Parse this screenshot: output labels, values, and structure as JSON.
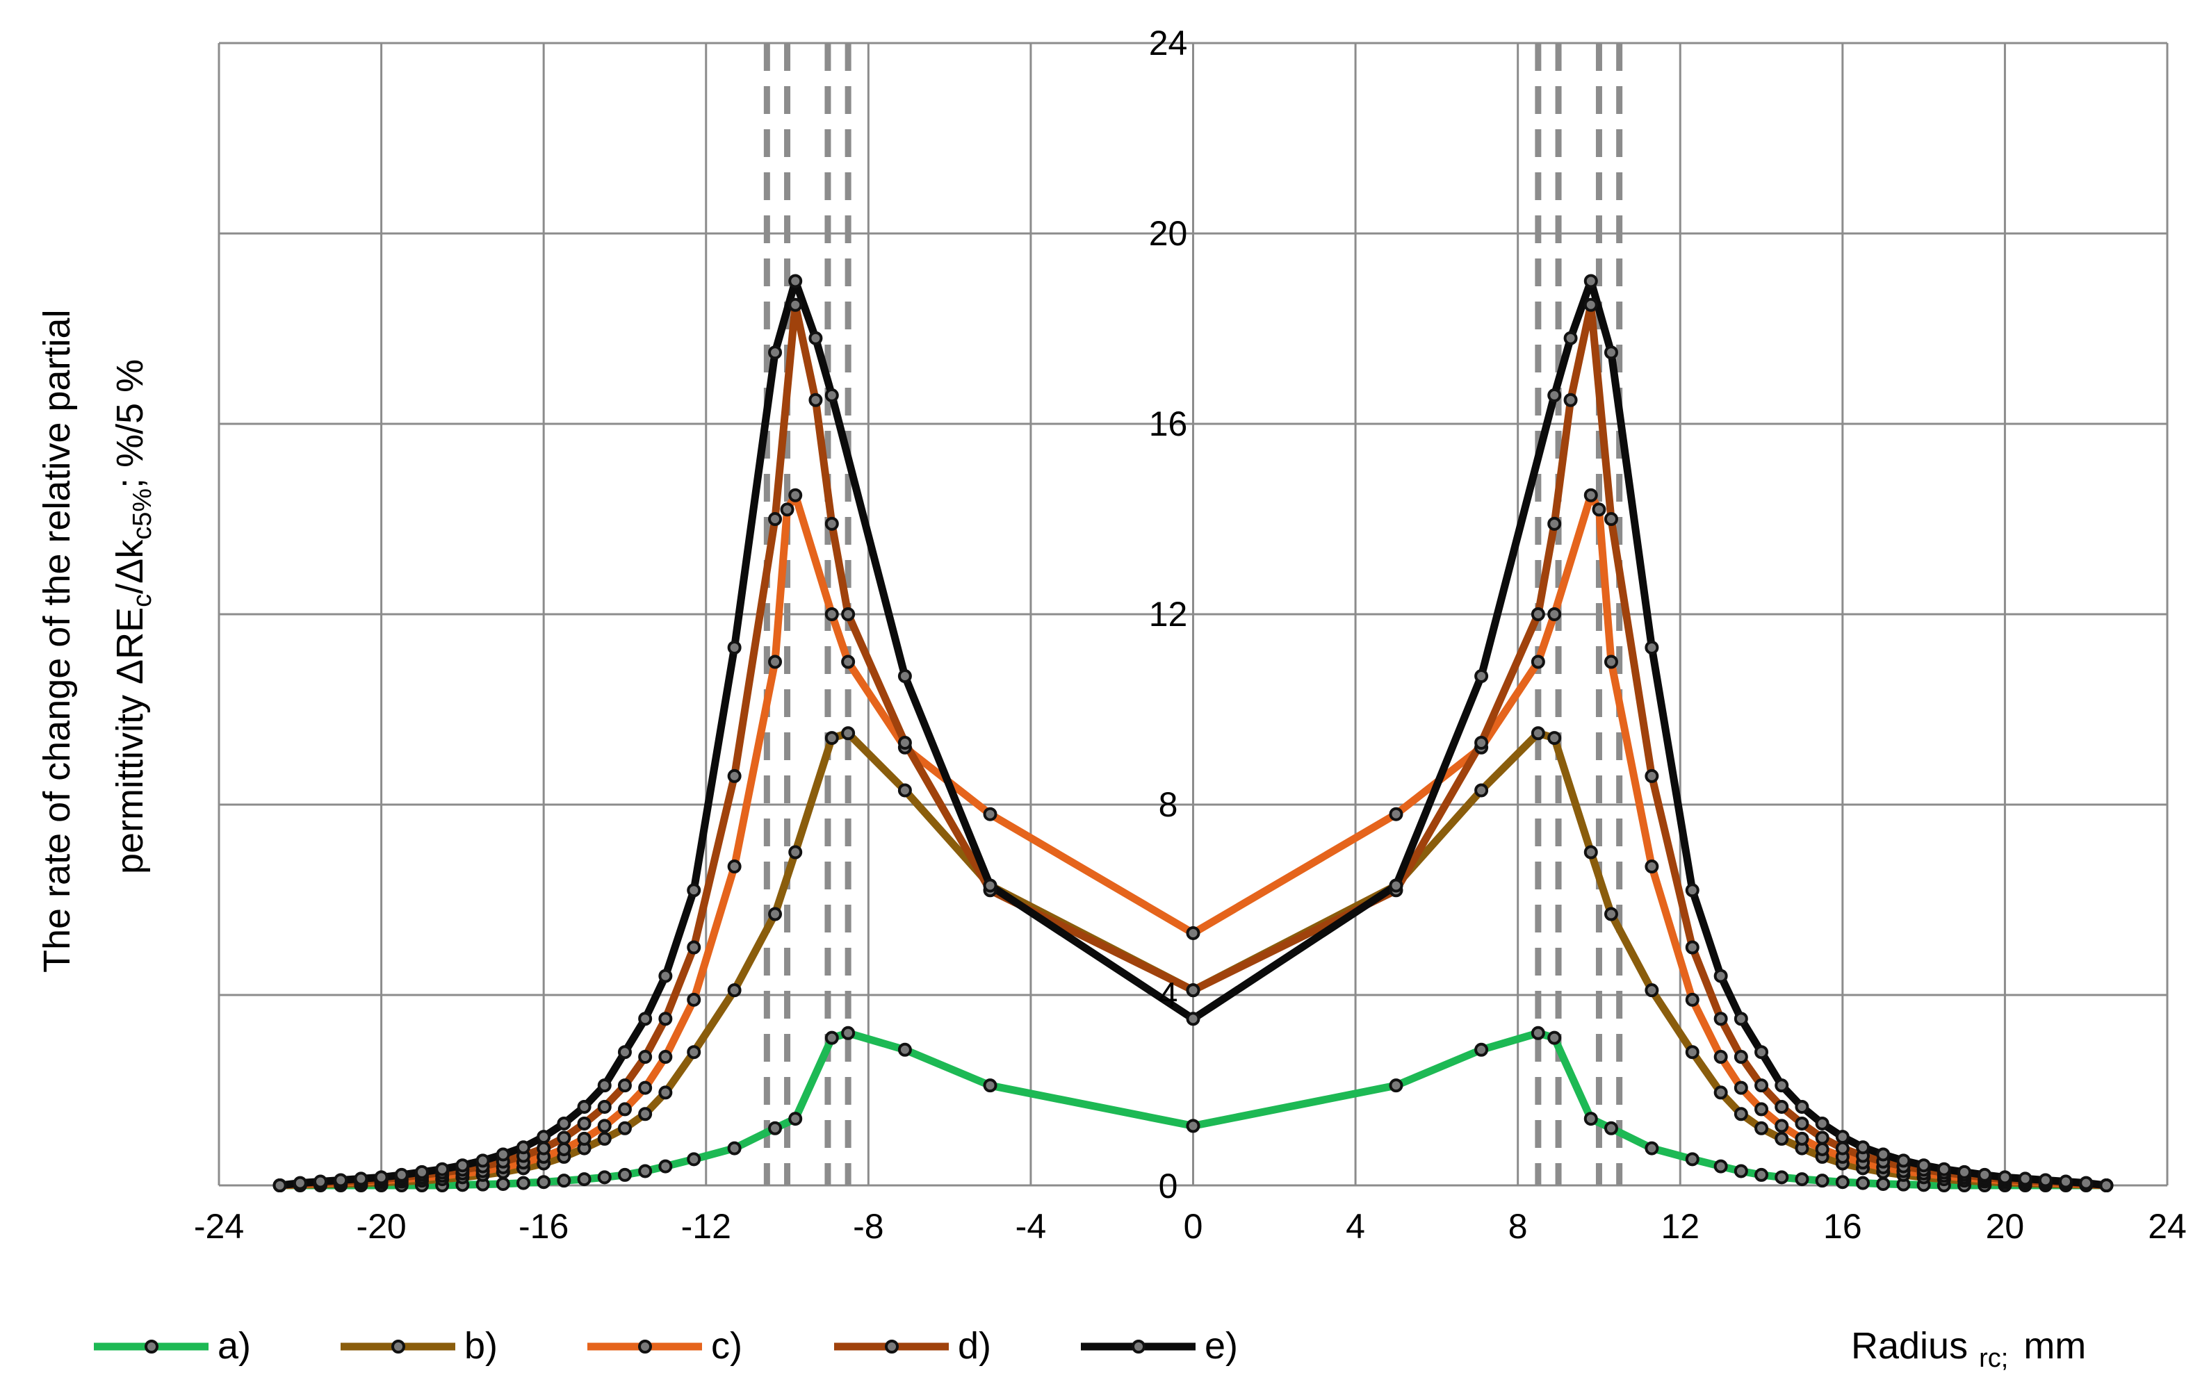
{
  "chart_data": {
    "type": "line",
    "title": "",
    "xlabel": {
      "main": "Radius",
      "sub": "rc;",
      "unit": "mm"
    },
    "ylabel": {
      "line1": "The rate of change of the relative partial",
      "line2_prefix": "permittivity  ΔRE",
      "line2_sub1": "c",
      "line2_mid": "/Δk",
      "line2_sub2": "c5%",
      "line2_suffix": ";  %/5 %"
    },
    "xlim": [
      -24,
      24
    ],
    "ylim": [
      0,
      24
    ],
    "x_ticks": [
      "-24",
      "-20",
      "-16",
      "-12",
      "-8",
      "-4",
      "0",
      "4",
      "8",
      "12",
      "16",
      "20",
      "24"
    ],
    "y_ticks": [
      "0",
      "4",
      "8",
      "12",
      "16",
      "20",
      "24"
    ],
    "grid": true,
    "legend_position": "bottom",
    "reference_lines_x": [
      -10.5,
      -10.0,
      -9.0,
      -8.5,
      8.5,
      9.0,
      10.0,
      10.5
    ],
    "series": [
      {
        "name": "a)",
        "color": "#1db954",
        "points": [
          [
            -22.5,
            0
          ],
          [
            -22,
            0
          ],
          [
            -21.5,
            0
          ],
          [
            -21,
            0
          ],
          [
            -20.5,
            0
          ],
          [
            -20,
            0
          ],
          [
            -19.5,
            0
          ],
          [
            -19,
            0
          ],
          [
            -18.5,
            0
          ],
          [
            -18,
            0.01
          ],
          [
            -17.5,
            0.02
          ],
          [
            -17,
            0.03
          ],
          [
            -16.5,
            0.05
          ],
          [
            -16,
            0.07
          ],
          [
            -15.5,
            0.1
          ],
          [
            -15,
            0.13
          ],
          [
            -14.5,
            0.17
          ],
          [
            -14,
            0.22
          ],
          [
            -13.5,
            0.3
          ],
          [
            -13,
            0.4
          ],
          [
            -12.3,
            0.55
          ],
          [
            -11.3,
            0.78
          ],
          [
            -10.3,
            1.2
          ],
          [
            -9.8,
            1.4
          ],
          [
            -8.9,
            3.1
          ],
          [
            -8.5,
            3.2
          ],
          [
            -7.1,
            2.85
          ],
          [
            -5,
            2.1
          ],
          [
            0,
            1.25
          ],
          [
            5,
            2.1
          ],
          [
            7.1,
            2.85
          ],
          [
            8.5,
            3.2
          ],
          [
            8.9,
            3.1
          ],
          [
            9.8,
            1.4
          ],
          [
            10.3,
            1.2
          ],
          [
            11.3,
            0.78
          ],
          [
            12.3,
            0.55
          ],
          [
            13,
            0.4
          ],
          [
            13.5,
            0.3
          ],
          [
            14,
            0.22
          ],
          [
            14.5,
            0.17
          ],
          [
            15,
            0.13
          ],
          [
            15.5,
            0.1
          ],
          [
            16,
            0.07
          ],
          [
            16.5,
            0.05
          ],
          [
            17,
            0.03
          ],
          [
            17.5,
            0.02
          ],
          [
            18,
            0.01
          ],
          [
            18.5,
            0
          ],
          [
            19,
            0
          ],
          [
            19.5,
            0
          ],
          [
            20,
            0
          ],
          [
            20.5,
            0
          ],
          [
            21,
            0
          ],
          [
            21.5,
            0
          ],
          [
            22,
            0
          ],
          [
            22.5,
            0
          ]
        ]
      },
      {
        "name": "b)",
        "color": "#8a5d0c",
        "points": [
          [
            -22.5,
            0
          ],
          [
            -22,
            0.01
          ],
          [
            -21.5,
            0.02
          ],
          [
            -21,
            0.03
          ],
          [
            -20.5,
            0.04
          ],
          [
            -20,
            0.06
          ],
          [
            -19.5,
            0.08
          ],
          [
            -19,
            0.1
          ],
          [
            -18.5,
            0.13
          ],
          [
            -18,
            0.17
          ],
          [
            -17.5,
            0.22
          ],
          [
            -17,
            0.28
          ],
          [
            -16.5,
            0.36
          ],
          [
            -16,
            0.46
          ],
          [
            -15.5,
            0.6
          ],
          [
            -15,
            0.78
          ],
          [
            -14.5,
            0.98
          ],
          [
            -14,
            1.2
          ],
          [
            -13.5,
            1.5
          ],
          [
            -13,
            1.95
          ],
          [
            -12.3,
            2.8
          ],
          [
            -11.3,
            4.1
          ],
          [
            -10.3,
            5.7
          ],
          [
            -9.8,
            7.0
          ],
          [
            -8.9,
            9.4
          ],
          [
            -8.5,
            9.5
          ],
          [
            -7.1,
            8.3
          ],
          [
            -5,
            6.3
          ],
          [
            0,
            4.1
          ],
          [
            5,
            6.3
          ],
          [
            7.1,
            8.3
          ],
          [
            8.5,
            9.5
          ],
          [
            8.9,
            9.4
          ],
          [
            9.8,
            7.0
          ],
          [
            10.3,
            5.7
          ],
          [
            11.3,
            4.1
          ],
          [
            12.3,
            2.8
          ],
          [
            13,
            1.95
          ],
          [
            13.5,
            1.5
          ],
          [
            14,
            1.2
          ],
          [
            14.5,
            0.98
          ],
          [
            15,
            0.78
          ],
          [
            15.5,
            0.6
          ],
          [
            16,
            0.46
          ],
          [
            16.5,
            0.36
          ],
          [
            17,
            0.28
          ],
          [
            17.5,
            0.22
          ],
          [
            18,
            0.17
          ],
          [
            18.5,
            0.13
          ],
          [
            19,
            0.1
          ],
          [
            19.5,
            0.08
          ],
          [
            20,
            0.06
          ],
          [
            20.5,
            0.04
          ],
          [
            21,
            0.03
          ],
          [
            21.5,
            0.02
          ],
          [
            22,
            0.01
          ],
          [
            22.5,
            0
          ]
        ]
      },
      {
        "name": "c)",
        "color": "#e5641c",
        "points": [
          [
            -22.5,
            0
          ],
          [
            -22,
            0.02
          ],
          [
            -21.5,
            0.04
          ],
          [
            -21,
            0.06
          ],
          [
            -20.5,
            0.08
          ],
          [
            -20,
            0.1
          ],
          [
            -19.5,
            0.13
          ],
          [
            -19,
            0.16
          ],
          [
            -18.5,
            0.2
          ],
          [
            -18,
            0.25
          ],
          [
            -17.5,
            0.3
          ],
          [
            -17,
            0.38
          ],
          [
            -16.5,
            0.48
          ],
          [
            -16,
            0.6
          ],
          [
            -15.5,
            0.76
          ],
          [
            -15,
            0.98
          ],
          [
            -14.5,
            1.25
          ],
          [
            -14,
            1.6
          ],
          [
            -13.5,
            2.05
          ],
          [
            -13,
            2.7
          ],
          [
            -12.3,
            3.9
          ],
          [
            -11.3,
            6.7
          ],
          [
            -10.3,
            11.0
          ],
          [
            -10,
            14.2
          ],
          [
            -9.8,
            14.5
          ],
          [
            -8.9,
            12.0
          ],
          [
            -8.5,
            11.0
          ],
          [
            -7.1,
            9.2
          ],
          [
            -5,
            7.8
          ],
          [
            0,
            5.3
          ],
          [
            5,
            7.8
          ],
          [
            7.1,
            9.2
          ],
          [
            8.5,
            11.0
          ],
          [
            8.9,
            12.0
          ],
          [
            9.8,
            14.5
          ],
          [
            10,
            14.2
          ],
          [
            10.3,
            11.0
          ],
          [
            11.3,
            6.7
          ],
          [
            12.3,
            3.9
          ],
          [
            13,
            2.7
          ],
          [
            13.5,
            2.05
          ],
          [
            14,
            1.6
          ],
          [
            14.5,
            1.25
          ],
          [
            15,
            0.98
          ],
          [
            15.5,
            0.76
          ],
          [
            16,
            0.6
          ],
          [
            16.5,
            0.48
          ],
          [
            17,
            0.38
          ],
          [
            17.5,
            0.3
          ],
          [
            18,
            0.25
          ],
          [
            18.5,
            0.2
          ],
          [
            19,
            0.16
          ],
          [
            19.5,
            0.13
          ],
          [
            20,
            0.1
          ],
          [
            20.5,
            0.08
          ],
          [
            21,
            0.06
          ],
          [
            21.5,
            0.04
          ],
          [
            22,
            0.02
          ],
          [
            22.5,
            0
          ]
        ]
      },
      {
        "name": "d)",
        "color": "#a0420c",
        "points": [
          [
            -22.5,
            0
          ],
          [
            -22,
            0.03
          ],
          [
            -21.5,
            0.06
          ],
          [
            -21,
            0.08
          ],
          [
            -20.5,
            0.1
          ],
          [
            -20,
            0.13
          ],
          [
            -19.5,
            0.17
          ],
          [
            -19,
            0.22
          ],
          [
            -18.5,
            0.27
          ],
          [
            -18,
            0.33
          ],
          [
            -17.5,
            0.4
          ],
          [
            -17,
            0.5
          ],
          [
            -16.5,
            0.62
          ],
          [
            -16,
            0.78
          ],
          [
            -15.5,
            1.0
          ],
          [
            -15,
            1.3
          ],
          [
            -14.5,
            1.65
          ],
          [
            -14,
            2.1
          ],
          [
            -13.5,
            2.7
          ],
          [
            -13,
            3.5
          ],
          [
            -12.3,
            5.0
          ],
          [
            -11.3,
            8.6
          ],
          [
            -10.3,
            14.0
          ],
          [
            -9.8,
            18.5
          ],
          [
            -9.3,
            16.5
          ],
          [
            -8.9,
            13.9
          ],
          [
            -8.5,
            12.0
          ],
          [
            -7.1,
            9.3
          ],
          [
            -5,
            6.2
          ],
          [
            0,
            4.1
          ],
          [
            5,
            6.2
          ],
          [
            7.1,
            9.3
          ],
          [
            8.5,
            12.0
          ],
          [
            8.9,
            13.9
          ],
          [
            9.3,
            16.5
          ],
          [
            9.8,
            18.5
          ],
          [
            10.3,
            14.0
          ],
          [
            11.3,
            8.6
          ],
          [
            12.3,
            5.0
          ],
          [
            13,
            3.5
          ],
          [
            13.5,
            2.7
          ],
          [
            14,
            2.1
          ],
          [
            14.5,
            1.65
          ],
          [
            15,
            1.3
          ],
          [
            15.5,
            1.0
          ],
          [
            16,
            0.78
          ],
          [
            16.5,
            0.62
          ],
          [
            17,
            0.5
          ],
          [
            17.5,
            0.4
          ],
          [
            18,
            0.33
          ],
          [
            18.5,
            0.27
          ],
          [
            19,
            0.22
          ],
          [
            19.5,
            0.17
          ],
          [
            20,
            0.13
          ],
          [
            20.5,
            0.1
          ],
          [
            21,
            0.08
          ],
          [
            21.5,
            0.06
          ],
          [
            22,
            0.03
          ],
          [
            22.5,
            0
          ]
        ]
      },
      {
        "name": "e)",
        "color": "#0b0b0b",
        "points": [
          [
            -22.5,
            0
          ],
          [
            -22,
            0.05
          ],
          [
            -21.5,
            0.08
          ],
          [
            -21,
            0.11
          ],
          [
            -20.5,
            0.14
          ],
          [
            -20,
            0.17
          ],
          [
            -19.5,
            0.22
          ],
          [
            -19,
            0.28
          ],
          [
            -18.5,
            0.34
          ],
          [
            -18,
            0.42
          ],
          [
            -17.5,
            0.52
          ],
          [
            -17,
            0.65
          ],
          [
            -16.5,
            0.8
          ],
          [
            -16,
            1.02
          ],
          [
            -15.5,
            1.3
          ],
          [
            -15,
            1.65
          ],
          [
            -14.5,
            2.1
          ],
          [
            -14,
            2.8
          ],
          [
            -13.5,
            3.5
          ],
          [
            -13,
            4.4
          ],
          [
            -12.3,
            6.2
          ],
          [
            -11.3,
            11.3
          ],
          [
            -10.3,
            17.5
          ],
          [
            -9.8,
            19.0
          ],
          [
            -9.3,
            17.8
          ],
          [
            -8.9,
            16.6
          ],
          [
            -7.1,
            10.7
          ],
          [
            -5,
            6.3
          ],
          [
            0,
            3.5
          ],
          [
            5,
            6.3
          ],
          [
            7.1,
            10.7
          ],
          [
            8.9,
            16.6
          ],
          [
            9.3,
            17.8
          ],
          [
            9.8,
            19.0
          ],
          [
            10.3,
            17.5
          ],
          [
            11.3,
            11.3
          ],
          [
            12.3,
            6.2
          ],
          [
            13,
            4.4
          ],
          [
            13.5,
            3.5
          ],
          [
            14,
            2.8
          ],
          [
            14.5,
            2.1
          ],
          [
            15,
            1.65
          ],
          [
            15.5,
            1.3
          ],
          [
            16,
            1.02
          ],
          [
            16.5,
            0.8
          ],
          [
            17,
            0.65
          ],
          [
            17.5,
            0.52
          ],
          [
            18,
            0.42
          ],
          [
            18.5,
            0.34
          ],
          [
            19,
            0.28
          ],
          [
            19.5,
            0.22
          ],
          [
            20,
            0.17
          ],
          [
            20.5,
            0.14
          ],
          [
            21,
            0.11
          ],
          [
            21.5,
            0.08
          ],
          [
            22,
            0.05
          ],
          [
            22.5,
            0
          ]
        ]
      }
    ]
  }
}
